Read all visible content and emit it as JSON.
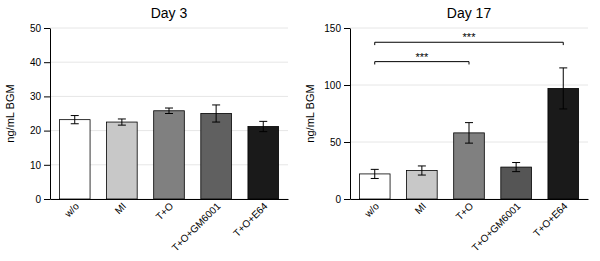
{
  "chart_data": [
    {
      "type": "bar",
      "title": "Day 3",
      "ylabel": "ng/mL BGM",
      "categories": [
        "w/o",
        "MI",
        "T+O",
        "T+O+GM6001",
        "T+O+E64"
      ],
      "values": [
        23.2,
        22.5,
        25.8,
        25.0,
        21.2
      ],
      "errors": [
        1.2,
        0.9,
        0.8,
        2.5,
        1.5
      ],
      "colors": [
        "#ffffff",
        "#c8c8c8",
        "#808080",
        "#606060",
        "#1a1a1a"
      ],
      "ylim": [
        0,
        50
      ],
      "yticks": [
        0,
        10,
        20,
        30,
        40,
        50
      ]
    },
    {
      "type": "bar",
      "title": "Day 17",
      "ylabel": "ng/mL BGM",
      "categories": [
        "w/o",
        "MI",
        "T+O",
        "T+O+GM6001",
        "T+O+E64"
      ],
      "values": [
        22.0,
        25.0,
        58.0,
        28.0,
        97.0
      ],
      "errors": [
        4.0,
        4.0,
        9.0,
        4.0,
        18.0
      ],
      "colors": [
        "#ffffff",
        "#c8c8c8",
        "#808080",
        "#555555",
        "#1a1a1a"
      ],
      "ylim": [
        0,
        150
      ],
      "yticks": [
        0,
        50,
        100,
        150
      ],
      "annotations": [
        {
          "label": "***",
          "from": "w/o",
          "to": "T+O",
          "y": 118
        },
        {
          "label": "***",
          "from": "w/o",
          "to": "T+O+E64",
          "y": 135
        }
      ]
    }
  ]
}
